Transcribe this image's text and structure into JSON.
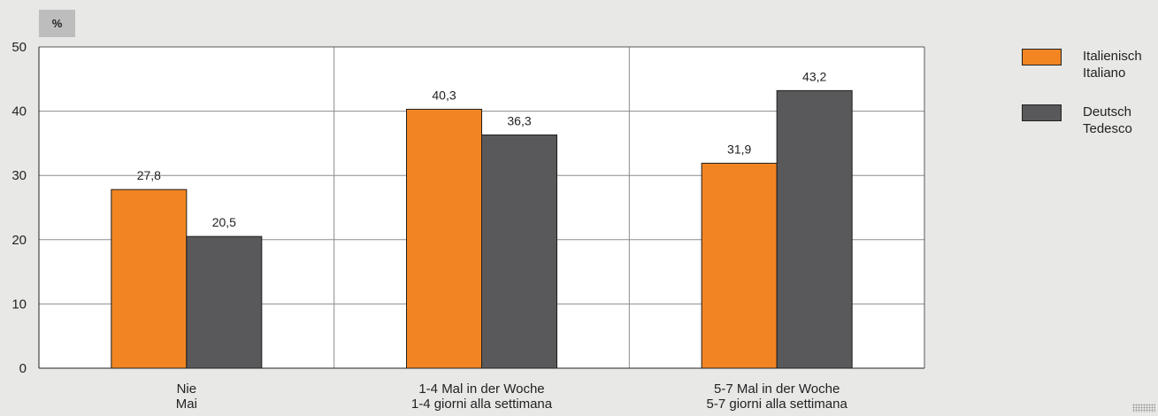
{
  "chart_data": {
    "type": "bar",
    "unit_label": "%",
    "categories": [
      [
        "Nie",
        "Mai"
      ],
      [
        "1-4 Mal in der Woche",
        "1-4 giorni alla settimana"
      ],
      [
        "5-7 Mal in der Woche",
        "5-7 giorni alla settimana"
      ]
    ],
    "series": [
      {
        "name": [
          "Italienisch",
          "Italiano"
        ],
        "color": "#f28522",
        "values": [
          27.8,
          40.3,
          31.9
        ],
        "labels": [
          "27,8",
          "40,3",
          "31,9"
        ]
      },
      {
        "name": [
          "Deutsch",
          "Tedesco"
        ],
        "color": "#59595b",
        "values": [
          20.5,
          36.3,
          43.2
        ],
        "labels": [
          "20,5",
          "36,3",
          "43,2"
        ]
      }
    ],
    "ylim": [
      0,
      50
    ],
    "yticks": [
      0,
      10,
      20,
      30,
      40,
      50
    ],
    "grid": true,
    "legend_position": "right"
  }
}
